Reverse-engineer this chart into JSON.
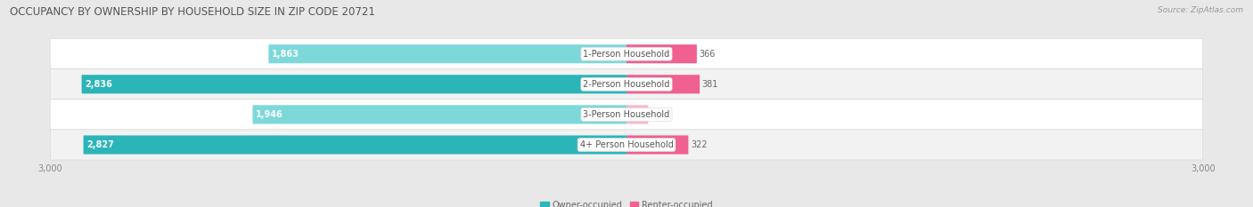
{
  "title": "OCCUPANCY BY OWNERSHIP BY HOUSEHOLD SIZE IN ZIP CODE 20721",
  "source": "Source: ZipAtlas.com",
  "categories": [
    "1-Person Household",
    "2-Person Household",
    "3-Person Household",
    "4+ Person Household"
  ],
  "owner_values": [
    1863,
    2836,
    1946,
    2827
  ],
  "renter_values": [
    366,
    381,
    113,
    322
  ],
  "max_val": 3000,
  "owner_color_dark": "#2bb5b8",
  "owner_color_light": "#7dd8da",
  "renter_color_dark": "#f06090",
  "renter_color_light": "#f8b8cc",
  "bg_color": "#e8e8e8",
  "row_bg_color": "#f2f2f2",
  "row_bg_color2": "#ffffff",
  "title_fontsize": 8.5,
  "label_fontsize": 7,
  "tick_fontsize": 7,
  "legend_fontsize": 7,
  "source_fontsize": 6.5
}
